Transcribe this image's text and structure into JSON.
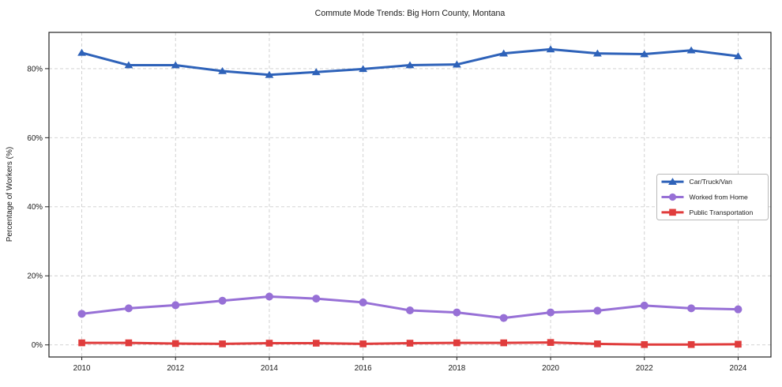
{
  "chart_data": {
    "type": "line",
    "title": "Commute Mode Trends: Big Horn County, Montana",
    "xlabel": "",
    "ylabel": "Percentage of Workers (%)",
    "x": [
      2010,
      2011,
      2012,
      2013,
      2014,
      2015,
      2016,
      2017,
      2018,
      2019,
      2020,
      2021,
      2022,
      2023,
      2024
    ],
    "xticks": [
      "2010",
      "2012",
      "2014",
      "2016",
      "2018",
      "2020",
      "2022",
      "2024"
    ],
    "xtick_years": [
      2010,
      2012,
      2014,
      2016,
      2018,
      2020,
      2022,
      2024
    ],
    "yticks": [
      0,
      20,
      40,
      60,
      80
    ],
    "ytick_labels": [
      "0%",
      "20%",
      "40%",
      "60%",
      "80%"
    ],
    "xlim": [
      2009.3,
      2024.7
    ],
    "ylim": [
      -3.5,
      90.5
    ],
    "grid": true,
    "legend_position": "center-right",
    "series": [
      {
        "name": "Car/Truck/Van",
        "color": "#2e62b9",
        "marker": "triangle",
        "values": [
          84.6,
          81.0,
          81.0,
          79.3,
          78.2,
          79.0,
          79.9,
          81.0,
          81.2,
          84.4,
          85.6,
          84.4,
          84.2,
          85.3,
          83.6
        ]
      },
      {
        "name": "Worked from Home",
        "color": "#9770d6",
        "marker": "circle",
        "values": [
          9.0,
          10.6,
          11.5,
          12.8,
          14.0,
          13.4,
          12.3,
          10.0,
          9.4,
          7.8,
          9.4,
          9.9,
          11.4,
          10.6,
          10.3
        ]
      },
      {
        "name": "Public Transportation",
        "color": "#e03c3c",
        "marker": "square",
        "values": [
          0.6,
          0.6,
          0.4,
          0.3,
          0.5,
          0.5,
          0.3,
          0.5,
          0.6,
          0.6,
          0.7,
          0.3,
          0.1,
          0.1,
          0.2
        ]
      }
    ]
  }
}
